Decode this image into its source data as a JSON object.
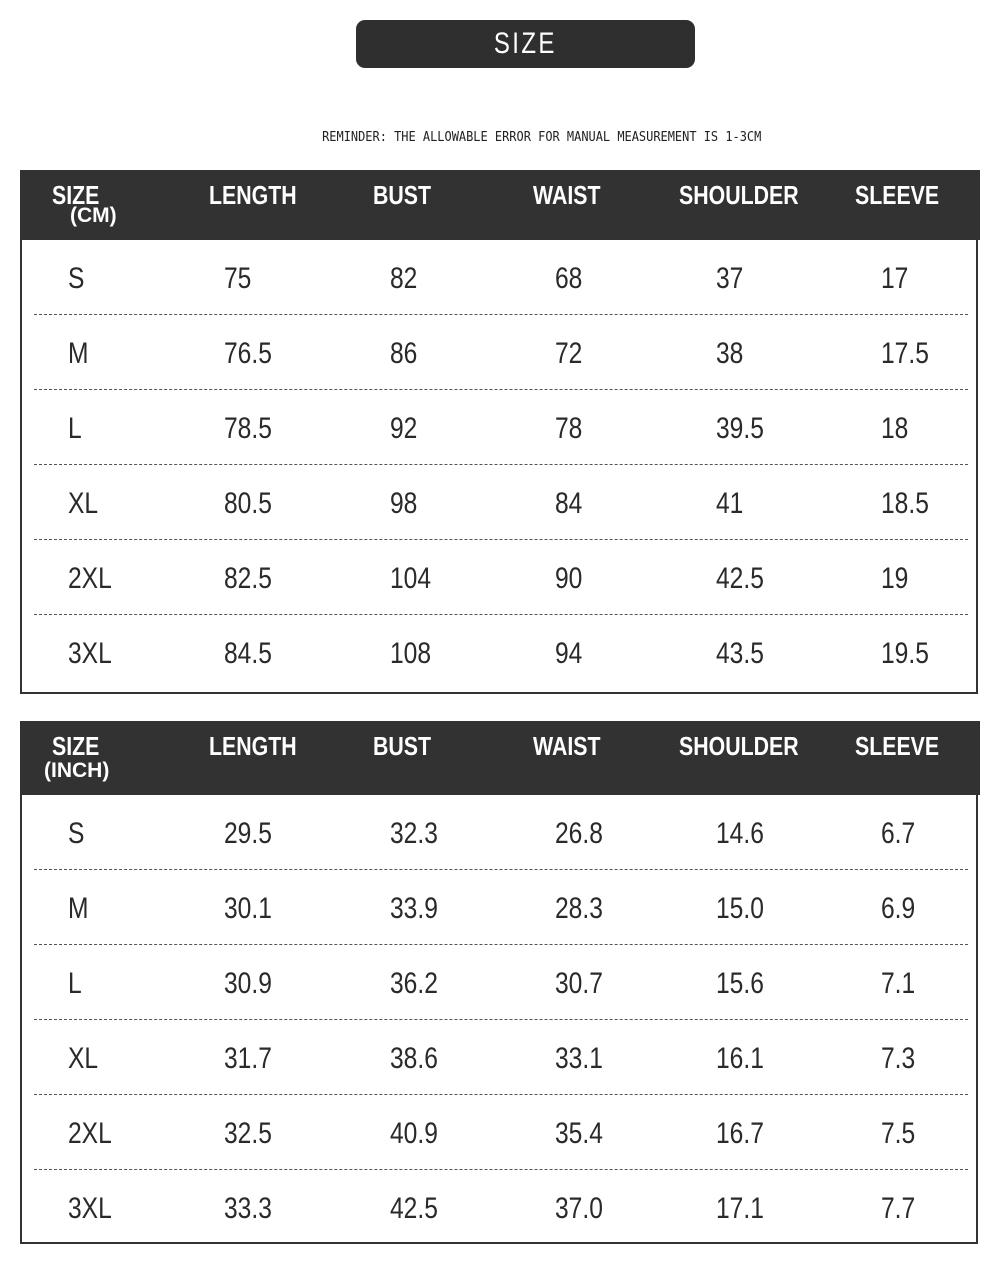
{
  "title": "SIZE",
  "reminder": "REMINDER: THE ALLOWABLE ERROR FOR MANUAL MEASUREMENT IS 1-3CM",
  "colors": {
    "header_bg": "#323232",
    "header_text": "#ffffff",
    "text": "#2a2a2a"
  },
  "tables": [
    {
      "headers": [
        "SIZE",
        "LENGTH",
        "BUST",
        "WAIST",
        "SHOULDER",
        "SLEEVE"
      ],
      "unit": "(CM)",
      "rows": [
        [
          "S",
          "75",
          "82",
          "68",
          "37",
          "17"
        ],
        [
          "M",
          "76.5",
          "86",
          "72",
          "38",
          "17.5"
        ],
        [
          "L",
          "78.5",
          "92",
          "78",
          "39.5",
          "18"
        ],
        [
          "XL",
          "80.5",
          "98",
          "84",
          "41",
          "18.5"
        ],
        [
          "2XL",
          "82.5",
          "104",
          "90",
          "42.5",
          "19"
        ],
        [
          "3XL",
          "84.5",
          "108",
          "94",
          "43.5",
          "19.5"
        ]
      ]
    },
    {
      "headers": [
        "SIZE",
        "LENGTH",
        "BUST",
        "WAIST",
        "SHOULDER",
        "SLEEVE"
      ],
      "unit": "(INCH)",
      "rows": [
        [
          "S",
          "29.5",
          "32.3",
          "26.8",
          "14.6",
          "6.7"
        ],
        [
          "M",
          "30.1",
          "33.9",
          "28.3",
          "15.0",
          "6.9"
        ],
        [
          "L",
          "30.9",
          "36.2",
          "30.7",
          "15.6",
          "7.1"
        ],
        [
          "XL",
          "31.7",
          "38.6",
          "33.1",
          "16.1",
          "7.3"
        ],
        [
          "2XL",
          "32.5",
          "40.9",
          "35.4",
          "16.7",
          "7.5"
        ],
        [
          "3XL",
          "33.3",
          "42.5",
          "37.0",
          "17.1",
          "7.7"
        ]
      ]
    }
  ]
}
